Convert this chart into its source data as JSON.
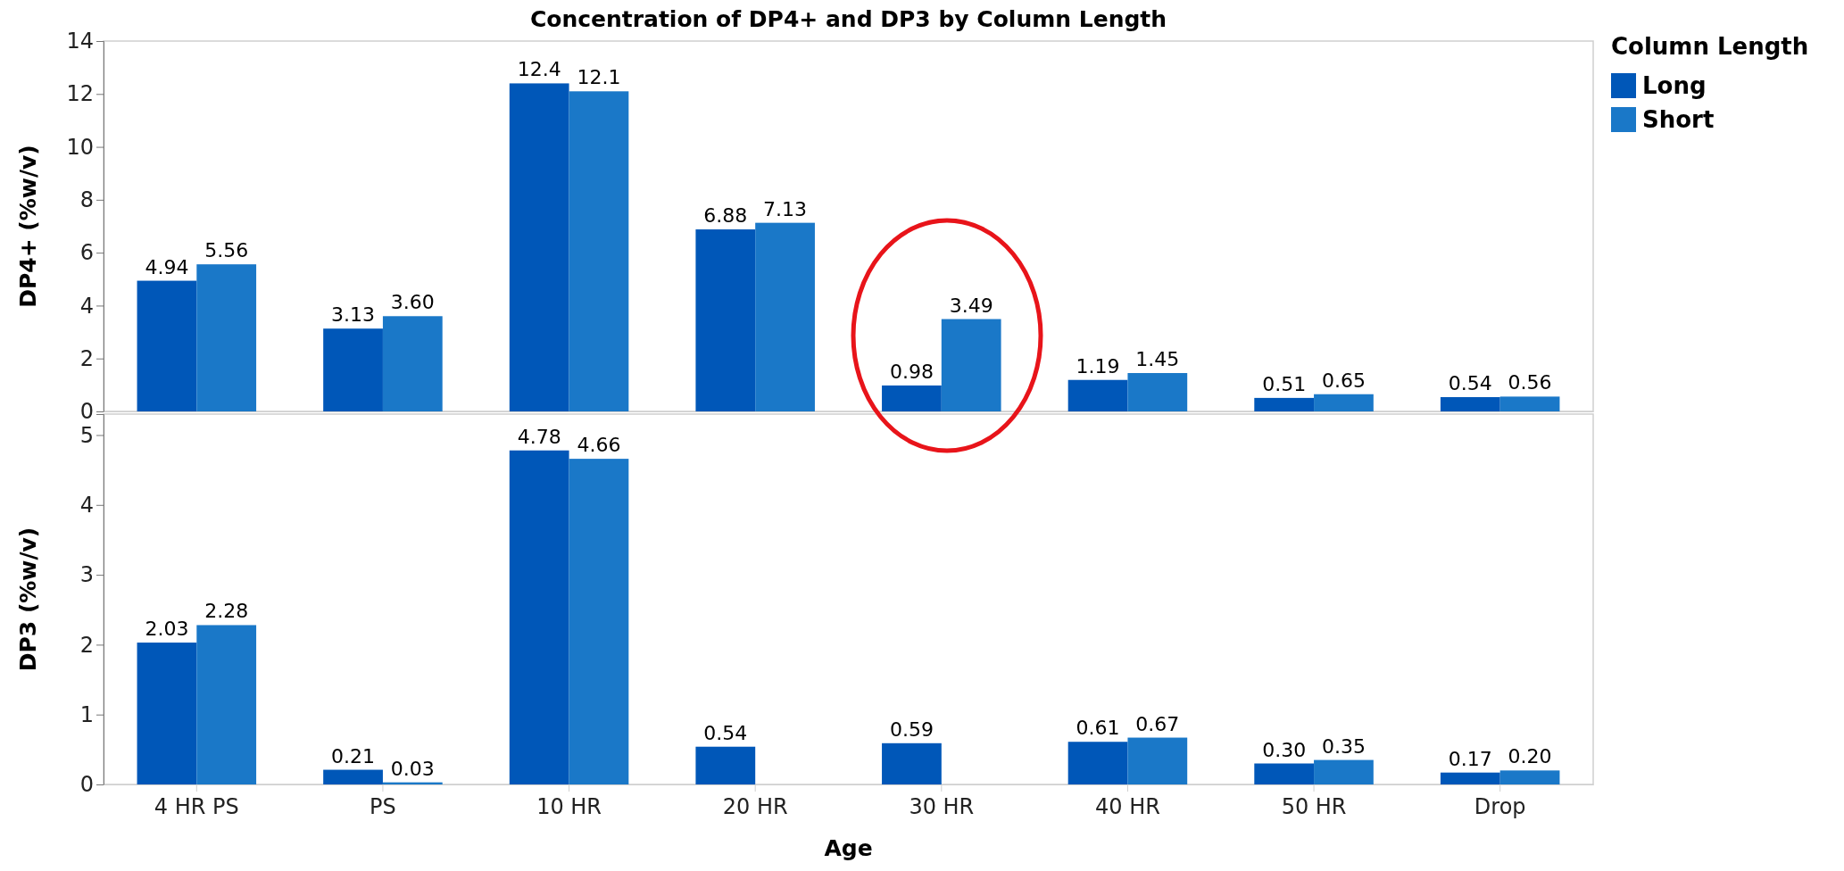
{
  "chart_data": [
    {
      "type": "bar",
      "title": "Concentration of DP4+ and DP3 by Column Length",
      "ylabel": "DP4+ (%w/v)",
      "legend_title": "Column Length",
      "legend": "right",
      "tick_labels": "y",
      "grid": false,
      "categories": [
        null,
        null,
        null,
        null,
        null,
        null,
        null,
        null
      ],
      "ylim": [
        0,
        14
      ],
      "yticks": [
        0,
        2,
        4,
        6,
        8,
        10,
        12,
        14
      ],
      "series": [
        {
          "name": "Long",
          "color": "#0057b8",
          "values": [
            4.94,
            3.13,
            12.4,
            6.88,
            0.98,
            1.19,
            0.51,
            0.54
          ],
          "value_labels": [
            "4.94",
            "3.13",
            "12.4",
            "6.88",
            "0.98",
            "1.19",
            "0.51",
            "0.54"
          ]
        },
        {
          "name": "Short",
          "color": "#1a78c8",
          "values": [
            5.56,
            3.6,
            12.1,
            7.13,
            3.49,
            1.45,
            0.65,
            0.56
          ],
          "value_labels": [
            "5.56",
            "3.60",
            "12.1",
            "7.13",
            "3.49",
            "1.45",
            "0.65",
            "0.56"
          ]
        }
      ]
    },
    {
      "type": "bar",
      "ylabel": "DP3 (%w/v)",
      "xlabel": "Age",
      "grid": false,
      "categories": [
        "4 HR PS",
        "PS",
        "10 HR",
        "20 HR",
        "30 HR",
        "40 HR",
        "50 HR",
        "Drop"
      ],
      "ylim": [
        0,
        5.3
      ],
      "yticks": [
        0,
        1,
        2,
        3,
        4,
        5
      ],
      "series": [
        {
          "color": "#0057b8",
          "values": [
            2.03,
            0.21,
            4.78,
            0.54,
            0.59,
            0.61,
            0.3,
            0.17
          ],
          "value_labels": [
            "2.03",
            "0.21",
            "4.78",
            "0.54",
            "0.59",
            "0.61",
            "0.30",
            "0.17"
          ]
        },
        {
          "color": "#1a78c8",
          "values": [
            2.28,
            0.03,
            4.66,
            null,
            null,
            0.67,
            0.35,
            0.2
          ],
          "value_labels": [
            "2.28",
            "0.03",
            "4.66",
            null,
            null,
            "0.67",
            "0.35",
            "0.20"
          ]
        }
      ]
    }
  ]
}
